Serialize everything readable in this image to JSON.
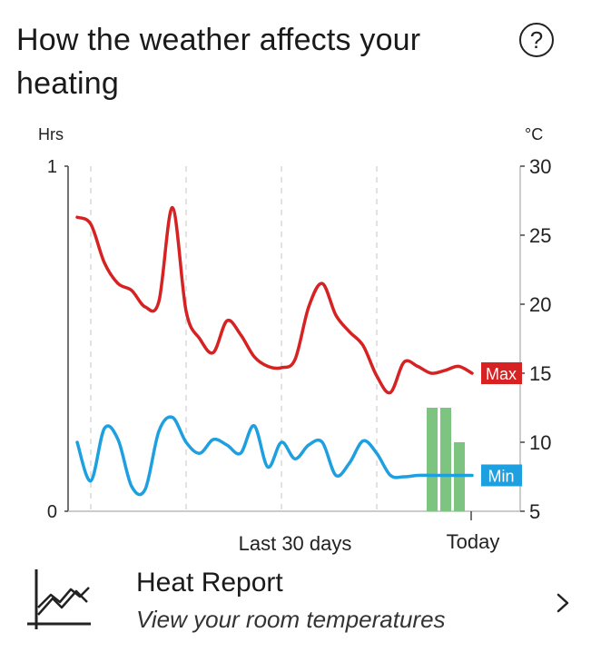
{
  "header": {
    "title": "How the weather affects your heating",
    "help_icon": "question-circle-icon",
    "help_glyph": "?"
  },
  "chart_data": {
    "type": "line",
    "left_axis": {
      "label": "Hrs",
      "ticks": [
        0,
        1
      ],
      "range": [
        0,
        1
      ]
    },
    "right_axis": {
      "label": "°C",
      "ticks": [
        5,
        10,
        15,
        20,
        25,
        30
      ],
      "range": [
        5,
        30
      ]
    },
    "x_labels": [
      "Last 30 days",
      "Today"
    ],
    "x_range": [
      1,
      30
    ],
    "series": [
      {
        "name": "Max",
        "axis": "right",
        "color": "#d62222",
        "x": [
          1,
          2,
          3,
          4,
          5,
          6,
          7,
          8,
          9,
          10,
          11,
          12,
          13,
          14,
          15,
          16,
          17,
          18,
          19,
          20,
          21,
          22,
          23,
          24,
          25,
          26,
          27,
          28,
          29,
          30
        ],
        "values": [
          26.3,
          25.8,
          23.0,
          21.5,
          21.0,
          19.8,
          20.2,
          27.0,
          19.5,
          17.5,
          16.5,
          18.8,
          17.8,
          16.2,
          15.5,
          15.4,
          16.0,
          19.8,
          21.5,
          19.2,
          18.0,
          17.0,
          14.8,
          13.6,
          15.8,
          15.5,
          15.0,
          15.2,
          15.5,
          15.0
        ]
      },
      {
        "name": "Min",
        "axis": "right",
        "color": "#1ea0e0",
        "x": [
          1,
          2,
          3,
          4,
          5,
          6,
          7,
          8,
          9,
          10,
          11,
          12,
          13,
          14,
          15,
          16,
          17,
          18,
          19,
          20,
          21,
          22,
          23,
          24,
          25,
          26,
          27,
          28,
          29,
          30
        ],
        "values": [
          10.0,
          7.2,
          11.0,
          10.2,
          6.8,
          6.6,
          10.8,
          11.8,
          10.0,
          9.2,
          10.2,
          9.8,
          9.2,
          11.2,
          8.2,
          10.0,
          8.8,
          9.8,
          10.0,
          7.6,
          8.5,
          10.1,
          9.2,
          7.6,
          7.5,
          7.6,
          7.6,
          7.6,
          7.6,
          7.6
        ]
      }
    ],
    "bars": {
      "axis": "left",
      "color": "#7cc47f",
      "x": [
        27,
        28,
        29
      ],
      "values": [
        0.3,
        0.3,
        0.2
      ]
    },
    "legend_tags": [
      "Max",
      "Min"
    ],
    "grid": "vertical-dashed"
  },
  "report": {
    "icon": "line-chart-icon",
    "title": "Heat Report",
    "subtitle": "View your room temperatures",
    "chevron": "chevron-right-icon"
  }
}
